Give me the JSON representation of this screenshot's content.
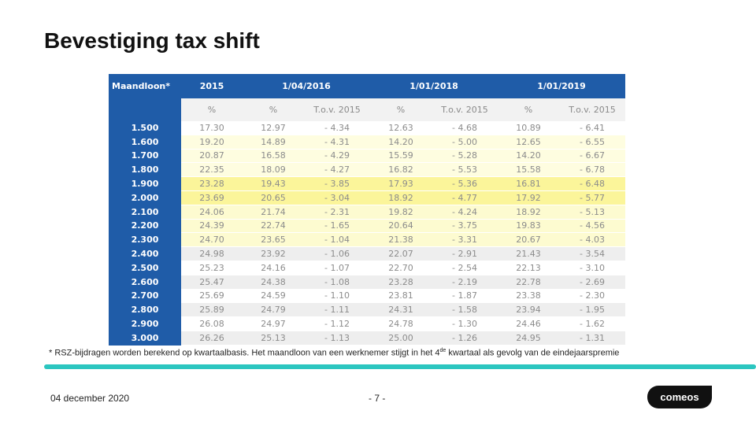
{
  "title": "Bevestiging tax shift",
  "table": {
    "header_row1": [
      "Maandloon*",
      "2015",
      "1/04/2016",
      "1/01/2018",
      "1/01/2019"
    ],
    "header_row2": [
      "",
      "%",
      "%",
      "T.o.v. 2015",
      "%",
      "T.o.v. 2015",
      "%",
      "T.o.v. 2015"
    ],
    "rows": [
      {
        "band": "white",
        "cells": [
          "1.500",
          "17.30",
          "12.97",
          "- 4.34",
          "12.63",
          "- 4.68",
          "10.89",
          "- 6.41"
        ]
      },
      {
        "band": "lightyellow",
        "cells": [
          "1.600",
          "19.20",
          "14.89",
          "- 4.31",
          "14.20",
          "- 5.00",
          "12.65",
          "- 6.55"
        ]
      },
      {
        "band": "lightyellow",
        "cells": [
          "1.700",
          "20.87",
          "16.58",
          "- 4.29",
          "15.59",
          "- 5.28",
          "14.20",
          "- 6.67"
        ]
      },
      {
        "band": "lightyellow",
        "cells": [
          "1.800",
          "22.35",
          "18.09",
          "- 4.27",
          "16.82",
          "- 5.53",
          "15.58",
          "- 6.78"
        ]
      },
      {
        "band": "yellow",
        "cells": [
          "1.900",
          "23.28",
          "19.43",
          "- 3.85",
          "17.93",
          "- 5.36",
          "16.81",
          "- 6.48"
        ]
      },
      {
        "band": "yellow",
        "cells": [
          "2.000",
          "23.69",
          "20.65",
          "- 3.04",
          "18.92",
          "- 4.77",
          "17.92",
          "- 5.77"
        ]
      },
      {
        "band": "pale",
        "cells": [
          "2.100",
          "24.06",
          "21.74",
          "- 2.31",
          "19.82",
          "- 4.24",
          "18.92",
          "- 5.13"
        ]
      },
      {
        "band": "pale",
        "cells": [
          "2.200",
          "24.39",
          "22.74",
          "- 1.65",
          "20.64",
          "- 3.75",
          "19.83",
          "- 4.56"
        ]
      },
      {
        "band": "pale",
        "cells": [
          "2.300",
          "24.70",
          "23.65",
          "- 1.04",
          "21.38",
          "- 3.31",
          "20.67",
          "- 4.03"
        ]
      },
      {
        "band": "grey",
        "cells": [
          "2.400",
          "24.98",
          "23.92",
          "- 1.06",
          "22.07",
          "- 2.91",
          "21.43",
          "- 3.54"
        ]
      },
      {
        "band": "white",
        "cells": [
          "2.500",
          "25.23",
          "24.16",
          "- 1.07",
          "22.70",
          "- 2.54",
          "22.13",
          "- 3.10"
        ]
      },
      {
        "band": "grey",
        "cells": [
          "2.600",
          "25.47",
          "24.38",
          "- 1.08",
          "23.28",
          "- 2.19",
          "22.78",
          "- 2.69"
        ]
      },
      {
        "band": "white",
        "cells": [
          "2.700",
          "25.69",
          "24.59",
          "- 1.10",
          "23.81",
          "- 1.87",
          "23.38",
          "- 2.30"
        ]
      },
      {
        "band": "grey",
        "cells": [
          "2.800",
          "25.89",
          "24.79",
          "- 1.11",
          "24.31",
          "- 1.58",
          "23.94",
          "- 1.95"
        ]
      },
      {
        "band": "white",
        "cells": [
          "2.900",
          "26.08",
          "24.97",
          "- 1.12",
          "24.78",
          "- 1.30",
          "24.46",
          "- 1.62"
        ]
      },
      {
        "band": "grey",
        "cells": [
          "3.000",
          "26.26",
          "25.13",
          "- 1.13",
          "25.00",
          "- 1.26",
          "24.95",
          "- 1.31"
        ]
      }
    ]
  },
  "footnote": {
    "before": "* RSZ-bijdragen worden berekend op kwartaalbasis. Het maandloon van een werknemer stijgt in het 4",
    "sup": "de",
    "after": " kwartaal als gevolg van de eindejaarspremie"
  },
  "footer": {
    "date": "04 december 2020",
    "page": "- 7 -",
    "logo_text": "comeos"
  },
  "colors": {
    "header_blue": "#1f5ca8",
    "accent_teal": "#2cc6c0"
  }
}
